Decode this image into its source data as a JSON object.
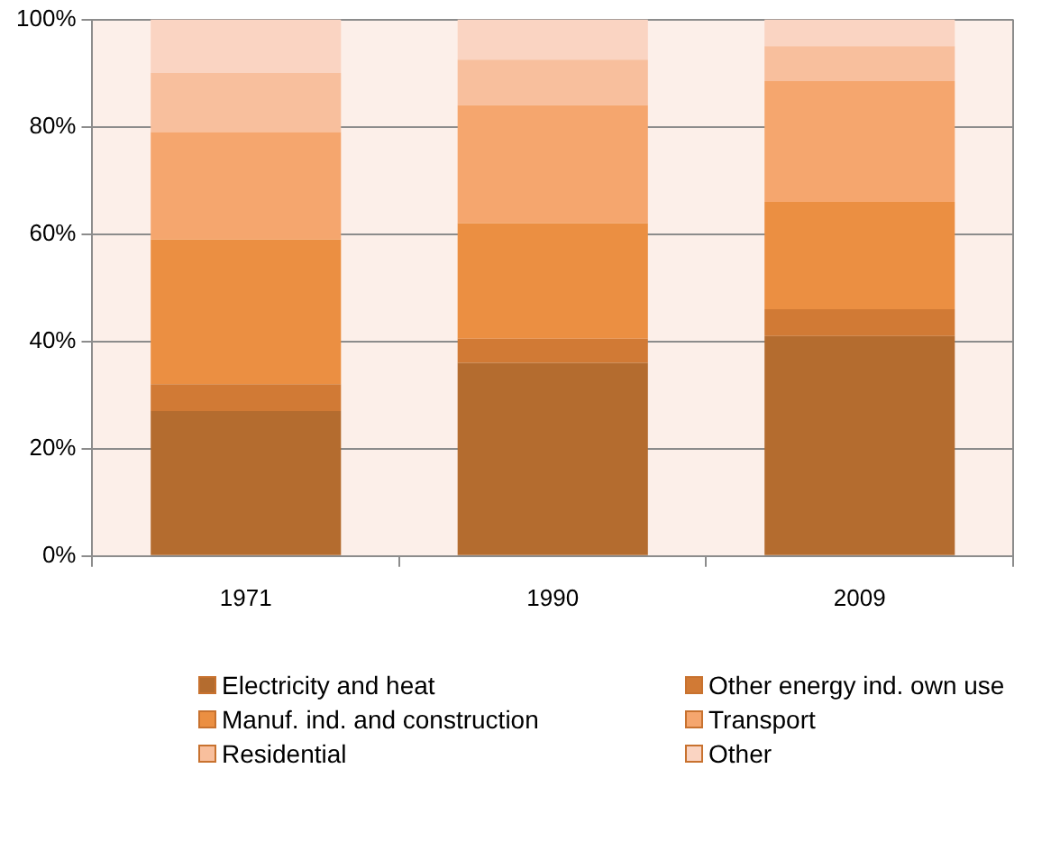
{
  "chart_data": {
    "type": "bar",
    "stacked": true,
    "categories": [
      "1971",
      "1990",
      "2009"
    ],
    "series": [
      {
        "name": "Electricity and heat",
        "color": "#b46c2f",
        "values": [
          27,
          36,
          41
        ]
      },
      {
        "name": "Other energy ind. own use",
        "color": "#d17a35",
        "values": [
          5,
          4.5,
          5
        ]
      },
      {
        "name": "Manuf. ind. and construction",
        "color": "#eb8f42",
        "values": [
          27,
          21.5,
          20
        ]
      },
      {
        "name": "Transport",
        "color": "#f5a66e",
        "values": [
          20,
          22,
          22.5
        ]
      },
      {
        "name": "Residential",
        "color": "#f8bf9d",
        "values": [
          11,
          8.5,
          6.5
        ]
      },
      {
        "name": "Other",
        "color": "#fad4c2",
        "values": [
          10,
          7.5,
          5
        ]
      }
    ],
    "ylim": [
      0,
      100
    ],
    "yticks": [
      {
        "value": 0,
        "label": "0%"
      },
      {
        "value": 20,
        "label": "20%"
      },
      {
        "value": 40,
        "label": "40%"
      },
      {
        "value": 60,
        "label": "60%"
      },
      {
        "value": 80,
        "label": "80%"
      },
      {
        "value": 100,
        "label": "100%"
      }
    ],
    "grid": "y",
    "legend": "bottom"
  }
}
